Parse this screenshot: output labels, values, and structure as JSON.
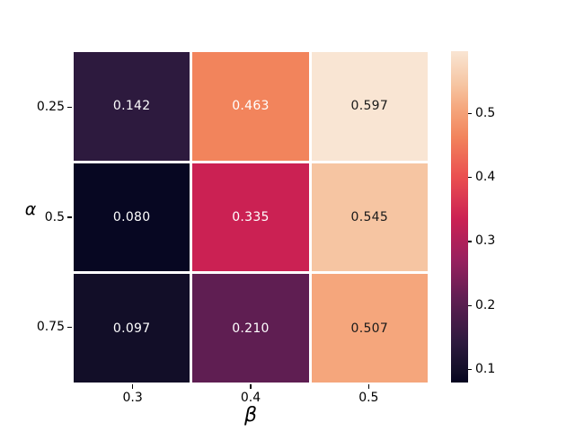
{
  "chart_data": {
    "type": "heatmap",
    "title": "",
    "xlabel": "β",
    "ylabel": "α",
    "x_categories": [
      "0.3",
      "0.4",
      "0.5"
    ],
    "y_categories": [
      "0.25",
      "0.5",
      "0.75"
    ],
    "values": [
      [
        0.142,
        0.463,
        0.597
      ],
      [
        0.08,
        0.335,
        0.545
      ],
      [
        0.097,
        0.21,
        0.507
      ]
    ],
    "annotations": [
      [
        "0.142",
        "0.463",
        "0.597"
      ],
      [
        "0.080",
        "0.335",
        "0.545"
      ],
      [
        "0.097",
        "0.210",
        "0.507"
      ]
    ],
    "cell_colors": [
      [
        "#2d1a3e",
        "#f2845c",
        "#f9e5d3"
      ],
      [
        "#070722",
        "#cb2153",
        "#f6c5a2"
      ],
      [
        "#120e28",
        "#5f1e52",
        "#f5a67c"
      ]
    ],
    "annotation_colors": [
      [
        "#ffffff",
        "#ffffff",
        "#1a1a1a"
      ],
      [
        "#ffffff",
        "#ffffff",
        "#1a1a1a"
      ],
      [
        "#ffffff",
        "#ffffff",
        "#1a1a1a"
      ]
    ],
    "colormap": "rocket",
    "vmin": 0.08,
    "vmax": 0.597,
    "grid_line_color": "#ffffff",
    "legend_position": "right-colorbar",
    "colorbar": {
      "ticks": [
        {
          "value": 0.1,
          "label": "0.1"
        },
        {
          "value": 0.2,
          "label": "0.2"
        },
        {
          "value": 0.3,
          "label": "0.3"
        },
        {
          "value": 0.4,
          "label": "0.4"
        },
        {
          "value": 0.5,
          "label": "0.5"
        }
      ],
      "gradient_stops": [
        {
          "pos": 0,
          "color": "#050420"
        },
        {
          "pos": 3.3,
          "color": "#120e28"
        },
        {
          "pos": 12,
          "color": "#2d1a3e"
        },
        {
          "pos": 25.1,
          "color": "#5f1e52"
        },
        {
          "pos": 37,
          "color": "#98205f"
        },
        {
          "pos": 49.3,
          "color": "#cb2153"
        },
        {
          "pos": 62,
          "color": "#ea4f50"
        },
        {
          "pos": 74.1,
          "color": "#f2845c"
        },
        {
          "pos": 82.6,
          "color": "#f5a67c"
        },
        {
          "pos": 89.9,
          "color": "#f6c5a2"
        },
        {
          "pos": 100,
          "color": "#f9e5d3"
        }
      ]
    }
  }
}
